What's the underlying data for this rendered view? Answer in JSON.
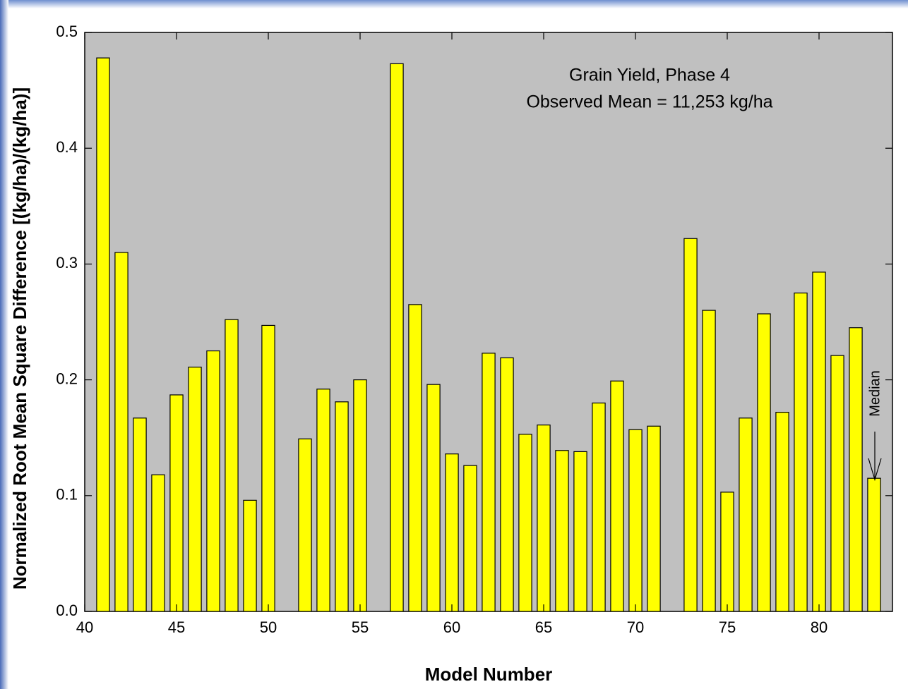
{
  "chart_data": {
    "type": "bar",
    "xlabel": "Model Number",
    "ylabel": "Normalized Root Mean Square Difference [(kg/ha)/(kg/ha)]",
    "annotations": [
      "Grain Yield, Phase 4",
      "Observed Mean = 11,253 kg/ha",
      "Median"
    ],
    "x": [
      41,
      42,
      43,
      44,
      45,
      46,
      47,
      48,
      49,
      50,
      52,
      53,
      54,
      55,
      57,
      58,
      59,
      60,
      61,
      62,
      63,
      64,
      65,
      66,
      67,
      68,
      69,
      70,
      71,
      73,
      74,
      75,
      76,
      77,
      78,
      79,
      80,
      81,
      82,
      83
    ],
    "values": [
      0.478,
      0.31,
      0.167,
      0.118,
      0.187,
      0.211,
      0.225,
      0.252,
      0.096,
      0.247,
      0.149,
      0.192,
      0.181,
      0.2,
      0.473,
      0.265,
      0.196,
      0.136,
      0.126,
      0.223,
      0.219,
      0.153,
      0.161,
      0.139,
      0.138,
      0.18,
      0.199,
      0.157,
      0.16,
      0.322,
      0.26,
      0.103,
      0.167,
      0.257,
      0.172,
      0.275,
      0.293,
      0.221,
      0.245,
      0.115
    ],
    "color": "#ffff00",
    "xlim": [
      40,
      84
    ],
    "xticks": [
      40,
      45,
      50,
      55,
      60,
      65,
      70,
      75,
      80
    ],
    "ylim": [
      0,
      0.5
    ],
    "yticks": [
      {
        "value": 0,
        "label": "0.0"
      },
      0.1,
      0.2,
      0.3,
      0.4,
      0.5
    ],
    "grid": false
  }
}
